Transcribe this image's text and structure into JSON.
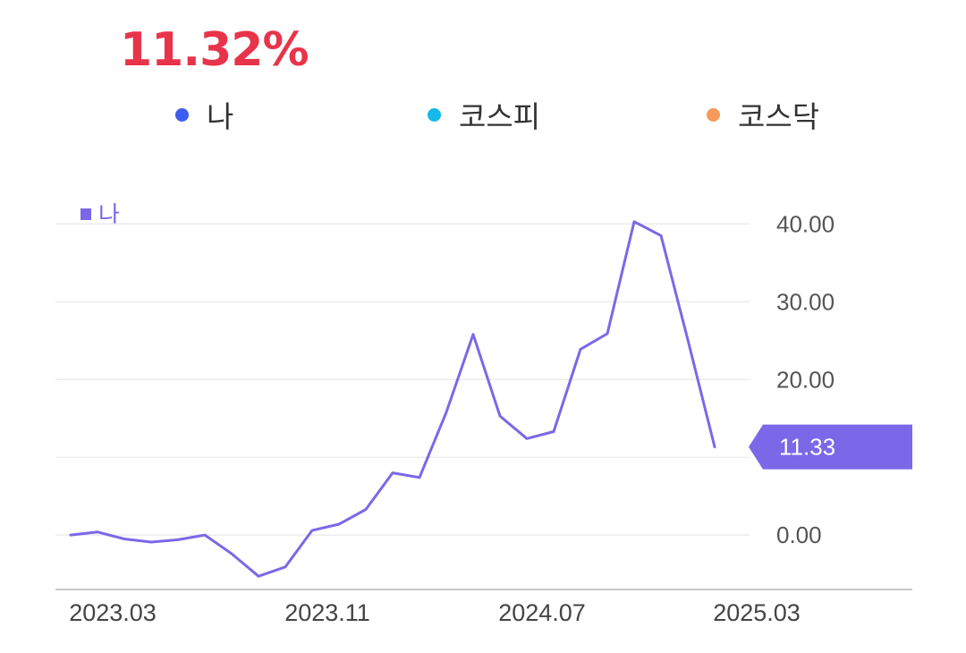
{
  "headline": {
    "value": "11.32%",
    "color": "#e8344a"
  },
  "legend": [
    {
      "label": "나",
      "color": "#3d5cf0"
    },
    {
      "label": "코스피",
      "color": "#14b8ea"
    },
    {
      "label": "코스닥",
      "color": "#f59a5a"
    }
  ],
  "chart_data": {
    "type": "line",
    "series_tag": "나",
    "line_color": "#7b68e8",
    "ylim": [
      -7,
      42
    ],
    "y_ticks": [
      0,
      10,
      20,
      30,
      40
    ],
    "y_tick_labels": [
      "0.00",
      "",
      "20.00",
      "30.00",
      "40.00"
    ],
    "x_tick_labels": [
      "2023.03",
      "2023.11",
      "2024.07",
      "2025.03"
    ],
    "x_tick_index": [
      0,
      8,
      16,
      24
    ],
    "grid": true,
    "series": [
      {
        "values": [
          0,
          0.4,
          -0.5,
          -0.9,
          -0.6,
          0,
          -2.4,
          -5.3,
          -4.1,
          0.6,
          1.4,
          3.3,
          8,
          7.4,
          15.8,
          25.8,
          15.3,
          12.4,
          13.3,
          23.9,
          25.9,
          40.3,
          38.5,
          25.1,
          11.33
        ]
      }
    ],
    "callout": {
      "value": "11.33",
      "color": "#7b68e8"
    }
  }
}
